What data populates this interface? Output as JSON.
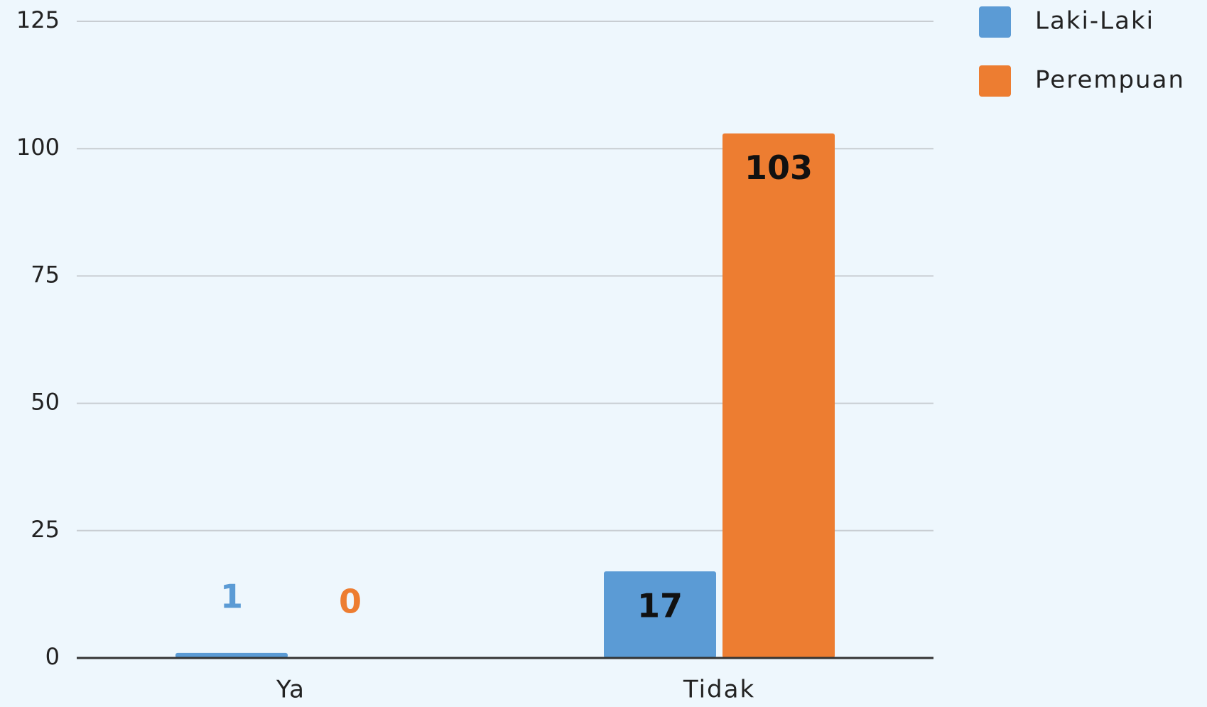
{
  "chart_data": {
    "type": "bar",
    "categories": [
      "Ya",
      "Tidak"
    ],
    "series": [
      {
        "name": "Laki-Laki",
        "color": "#5b9bd5",
        "values": [
          1,
          17
        ]
      },
      {
        "name": "Perempuan",
        "color": "#ed7d31",
        "values": [
          0,
          103
        ]
      }
    ],
    "ylim": [
      0,
      125
    ],
    "yticks": [
      0,
      25,
      50,
      75,
      100,
      125
    ],
    "grid": true,
    "legend": "top-right"
  }
}
